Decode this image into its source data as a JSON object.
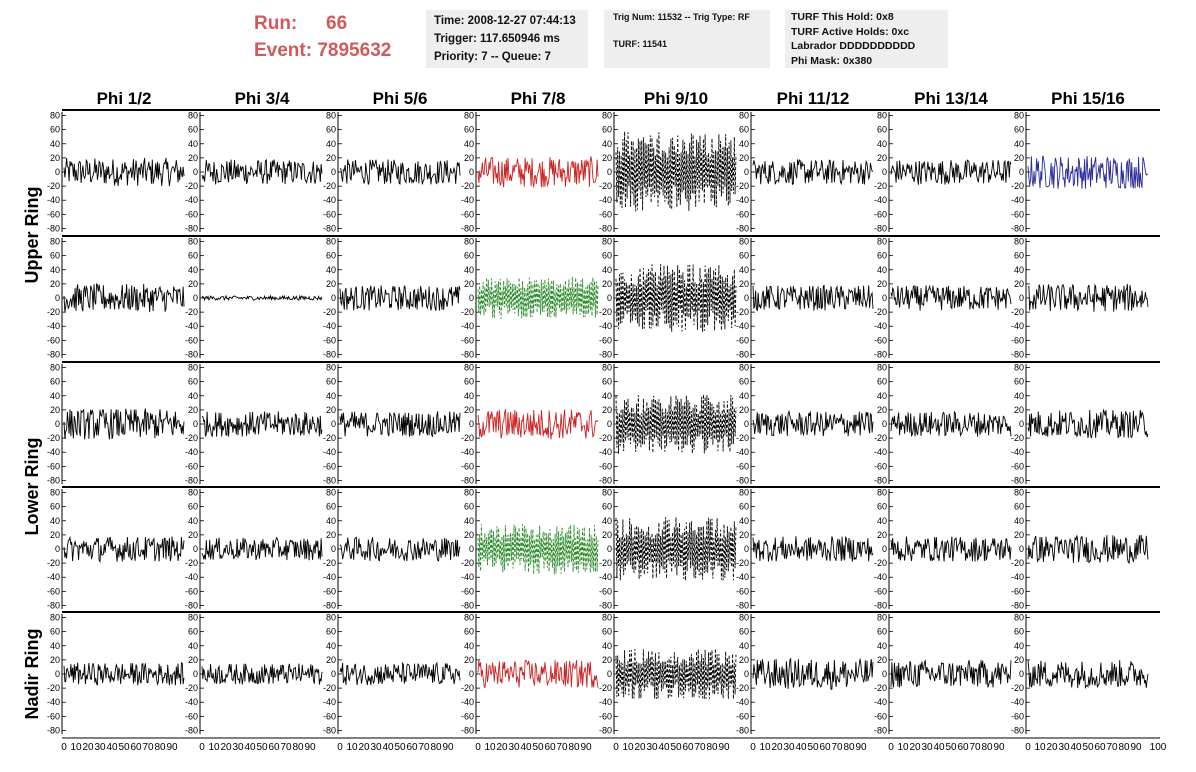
{
  "header": {
    "run_label": "Run:",
    "run_value": "66",
    "event_label": "Event:",
    "event_value": "7895632",
    "time": "Time: 2008-12-27 07:44:13",
    "trigger": "Trigger: 117.650946 ms",
    "priority": "Priority: 7 -- Queue: 7",
    "trig_num": "Trig Num: 11532 -- Trig Type: RF",
    "turf": "TURF: 11541",
    "turf_this_hold": "TURF This Hold: 0x8",
    "turf_active_holds": "TURF Active Holds: 0xc",
    "labrador": "Labrador DDDDDDDDDD",
    "phi_mask": "Phi Mask: 0x380"
  },
  "chart_data": {
    "type": "line",
    "columns": [
      "Phi 1/2",
      "Phi 3/4",
      "Phi 5/6",
      "Phi 7/8",
      "Phi 9/10",
      "Phi 11/12",
      "Phi 13/14",
      "Phi 15/16"
    ],
    "rows": [
      "Upper Ring",
      "Upper Ring",
      "Lower Ring",
      "Lower Ring",
      "Nadir Ring"
    ],
    "row_labels": [
      "Upper Ring",
      "Lower Ring",
      "Nadir Ring"
    ],
    "ylim": [
      -85,
      85
    ],
    "y_ticks": [
      80,
      60,
      40,
      20,
      0,
      -20,
      -40,
      -60,
      -80
    ],
    "xlim": [
      0,
      100
    ],
    "x_ticks": [
      0,
      10,
      20,
      30,
      40,
      50,
      60,
      70,
      80,
      90
    ],
    "x_tick_last": "100",
    "colors": {
      "default": "#000000",
      "red": "#cc2222",
      "green": "#2a8a2a",
      "blue": "#2a2a9a"
    },
    "panel_color": [
      [
        "default",
        "default",
        "default",
        "red",
        "default",
        "default",
        "default",
        "blue"
      ],
      [
        "default",
        "default",
        "default",
        "green",
        "default",
        "default",
        "default",
        "default"
      ],
      [
        "default",
        "default",
        "default",
        "red",
        "default",
        "default",
        "default",
        "default"
      ],
      [
        "default",
        "default",
        "default",
        "green",
        "default",
        "default",
        "default",
        "default"
      ],
      [
        "default",
        "default",
        "default",
        "red",
        "default",
        "default",
        "default",
        "default"
      ]
    ],
    "panel_dashed": [
      [
        false,
        false,
        false,
        false,
        true,
        false,
        false,
        false
      ],
      [
        false,
        false,
        false,
        true,
        true,
        false,
        false,
        false
      ],
      [
        false,
        false,
        false,
        false,
        true,
        false,
        false,
        false
      ],
      [
        false,
        false,
        false,
        true,
        true,
        false,
        false,
        false
      ],
      [
        false,
        false,
        false,
        false,
        true,
        false,
        false,
        false
      ]
    ],
    "panel_amplitude": [
      [
        20,
        18,
        18,
        22,
        48,
        18,
        18,
        24
      ],
      [
        20,
        3,
        18,
        25,
        40,
        18,
        18,
        20
      ],
      [
        22,
        18,
        18,
        22,
        35,
        18,
        18,
        20
      ],
      [
        18,
        16,
        17,
        30,
        38,
        18,
        18,
        20
      ],
      [
        16,
        15,
        16,
        20,
        30,
        22,
        20,
        20
      ]
    ]
  }
}
